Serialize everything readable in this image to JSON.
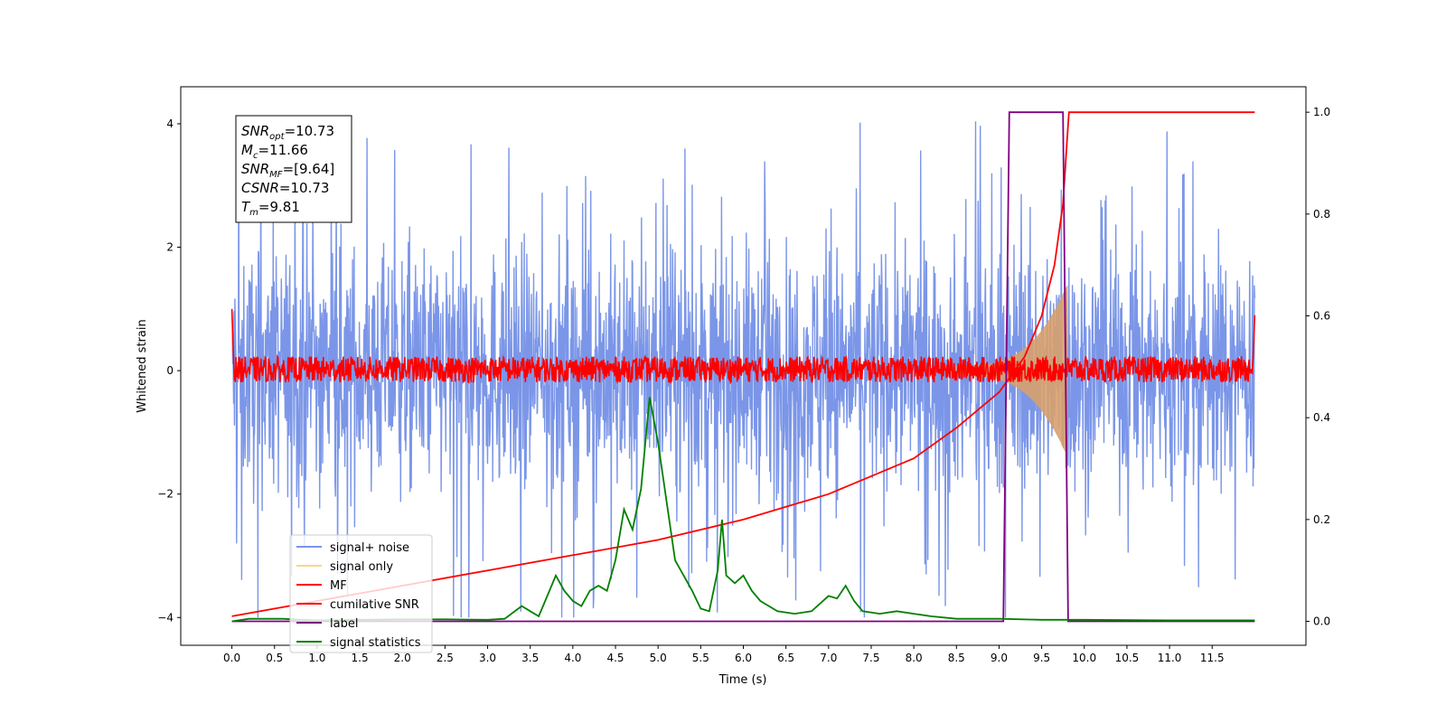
{
  "chart_data": {
    "type": "line",
    "xlabel": "Time (s)",
    "ylabel": "Whitened strain",
    "xlim": [
      -0.6,
      12.6
    ],
    "ylim": [
      -4.45,
      4.6
    ],
    "y2lim": [
      -0.047,
      1.05
    ],
    "xticks": [
      "0.0",
      "0.5",
      "1.0",
      "1.5",
      "2.0",
      "2.5",
      "3.0",
      "3.5",
      "4.0",
      "4.5",
      "5.0",
      "5.5",
      "6.0",
      "6.5",
      "7.0",
      "7.5",
      "8.0",
      "8.5",
      "9.0",
      "9.5",
      "10.0",
      "10.5",
      "11.0",
      "11.5"
    ],
    "yticks": [
      "4",
      "2",
      "0",
      "−2",
      "−4"
    ],
    "y2ticks": [
      "1.0",
      "0.8",
      "0.6",
      "0.4",
      "0.2",
      "0.0"
    ],
    "annotation": [
      {
        "base": "SNR",
        "sub": "opt",
        "value": "=10.73"
      },
      {
        "base": "M",
        "sub": "c",
        "value": "=11.66"
      },
      {
        "base": "SNR",
        "sub": "MF",
        "value": "=[9.64]"
      },
      {
        "base": "CSNR",
        "sub": "",
        "value": "=10.73"
      },
      {
        "base": "T",
        "sub": "m",
        "value": "=9.81"
      }
    ],
    "legend": {
      "placement": "lower-left",
      "entries": [
        {
          "label": "signal+ noise",
          "color": "#7b96e8"
        },
        {
          "label": "signal only",
          "color": "#fcd48c"
        },
        {
          "label": "MF",
          "color": "#ff0000"
        },
        {
          "label": "cumilative SNR",
          "color": "#ff0000"
        },
        {
          "label": "label",
          "color": "#800080"
        },
        {
          "label": "signal statistics",
          "color": "#008000"
        }
      ]
    },
    "series": [
      {
        "name": "signal+ noise",
        "axis": "left",
        "color": "#7b96e8",
        "x_range": [
          0.0,
          12.0
        ],
        "amplitude": 1.9,
        "peak_max": 4.1
      },
      {
        "name": "signal only",
        "axis": "left",
        "color": "#d8a06e",
        "chirp_start": 8.5,
        "chirp_end": 9.8,
        "peak_amplitude": 1.3
      },
      {
        "name": "MF",
        "axis": "left",
        "color": "#ff0000",
        "x_range": [
          0.0,
          12.0
        ],
        "amplitude": 0.3
      },
      {
        "name": "cumilative SNR",
        "axis": "right",
        "color": "#ff0000",
        "x": [
          0.0,
          1.0,
          2.0,
          3.0,
          4.0,
          5.0,
          6.0,
          7.0,
          8.0,
          8.5,
          9.0,
          9.3,
          9.5,
          9.65,
          9.75,
          9.8,
          9.82,
          12.0
        ],
        "y": [
          0.01,
          0.04,
          0.07,
          0.1,
          0.13,
          0.16,
          0.2,
          0.25,
          0.32,
          0.38,
          0.45,
          0.52,
          0.6,
          0.7,
          0.82,
          0.95,
          1.0,
          1.0
        ]
      },
      {
        "name": "label",
        "axis": "right",
        "color": "#800080",
        "x": [
          0.0,
          9.05,
          9.12,
          9.75,
          9.81,
          12.0
        ],
        "y": [
          0.0,
          0.0,
          1.0,
          1.0,
          0.0,
          0.0
        ]
      },
      {
        "name": "signal statistics",
        "axis": "right",
        "color": "#008000",
        "x": [
          0.0,
          0.2,
          0.4,
          0.6,
          0.8,
          1.0,
          1.5,
          2.0,
          2.5,
          3.0,
          3.2,
          3.4,
          3.5,
          3.6,
          3.7,
          3.8,
          3.9,
          4.0,
          4.1,
          4.2,
          4.3,
          4.4,
          4.5,
          4.6,
          4.7,
          4.8,
          4.9,
          5.0,
          5.2,
          5.4,
          5.5,
          5.6,
          5.7,
          5.75,
          5.8,
          5.9,
          6.0,
          6.1,
          6.2,
          6.4,
          6.6,
          6.8,
          7.0,
          7.1,
          7.2,
          7.3,
          7.4,
          7.6,
          7.8,
          8.0,
          8.2,
          8.5,
          9.0,
          9.5,
          10.0,
          11.0,
          12.0
        ],
        "y": [
          0.0,
          0.005,
          0.005,
          0.005,
          0.003,
          0.002,
          0.003,
          0.004,
          0.004,
          0.003,
          0.005,
          0.03,
          0.02,
          0.01,
          0.05,
          0.09,
          0.06,
          0.04,
          0.03,
          0.06,
          0.07,
          0.06,
          0.12,
          0.22,
          0.18,
          0.26,
          0.44,
          0.35,
          0.12,
          0.06,
          0.025,
          0.02,
          0.1,
          0.2,
          0.09,
          0.075,
          0.09,
          0.06,
          0.04,
          0.02,
          0.015,
          0.02,
          0.05,
          0.045,
          0.07,
          0.04,
          0.02,
          0.015,
          0.02,
          0.015,
          0.01,
          0.005,
          0.005,
          0.003,
          0.003,
          0.002,
          0.002
        ]
      }
    ]
  }
}
